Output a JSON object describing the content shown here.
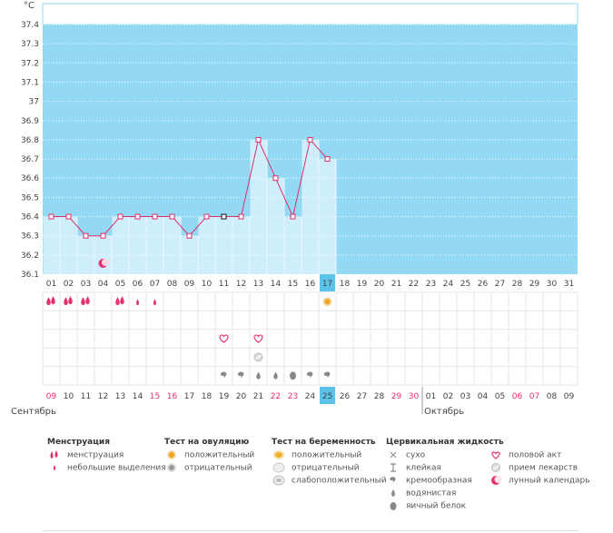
{
  "chart_data": {
    "type": "bar",
    "ylabel": "°C",
    "ylim": [
      36.1,
      37.4
    ],
    "yticks": [
      "36.1",
      "36.2",
      "36.3",
      "36.4",
      "36.5",
      "36.6",
      "36.7",
      "36.8",
      "36.9",
      "37",
      "37.1",
      "37.2",
      "37.3",
      "37.4"
    ],
    "cycle_days": [
      "01",
      "02",
      "03",
      "04",
      "05",
      "06",
      "07",
      "08",
      "09",
      "10",
      "11",
      "12",
      "13",
      "14",
      "15",
      "16",
      "17",
      "18",
      "19",
      "20",
      "21",
      "22",
      "23",
      "24",
      "25",
      "26",
      "27",
      "28",
      "29",
      "30",
      "31"
    ],
    "highlight_cycle_day": "17",
    "temperatures": [
      36.4,
      36.4,
      36.3,
      36.3,
      36.4,
      36.4,
      36.4,
      36.4,
      36.3,
      36.4,
      36.4,
      36.4,
      36.8,
      36.6,
      36.4,
      36.8,
      36.7
    ],
    "selected_point": 11,
    "dates": [
      "09",
      "10",
      "11",
      "12",
      "13",
      "14",
      "15",
      "16",
      "17",
      "18",
      "19",
      "20",
      "21",
      "22",
      "23",
      "24",
      "25",
      "26",
      "27",
      "28",
      "29",
      "30",
      "01",
      "02",
      "03",
      "04",
      "05",
      "06",
      "07",
      "08",
      "09"
    ],
    "red_dates": [
      0,
      6,
      7,
      13,
      14,
      20,
      21,
      27,
      28
    ],
    "highlight_date": "25",
    "months": [
      {
        "label": "Сентябрь"
      },
      {
        "label": "Октябрь"
      }
    ],
    "rows": {
      "menstruation": {
        "heavy": [
          1,
          2,
          3,
          5
        ],
        "light": [
          6,
          7
        ]
      },
      "ovulation_positive": [
        17
      ],
      "intercourse": [
        11,
        13
      ],
      "medication": [
        13
      ],
      "lunar": [
        4
      ],
      "cervical": [
        {
          "day": 11,
          "kind": "creamy"
        },
        {
          "day": 12,
          "kind": "creamy"
        },
        {
          "day": 13,
          "kind": "watery"
        },
        {
          "day": 14,
          "kind": "watery"
        },
        {
          "day": 15,
          "kind": "eggwhite"
        },
        {
          "day": 16,
          "kind": "creamy"
        },
        {
          "day": 17,
          "kind": "creamy"
        }
      ]
    }
  },
  "legend": {
    "menstruation": {
      "title": "Менструация",
      "items": [
        "менструация",
        "небольшие выделения"
      ]
    },
    "ovulation": {
      "title": "Тест на овуляцию",
      "items": [
        "положительный",
        "отрицательный"
      ]
    },
    "pregnancy": {
      "title": "Тест на беременность",
      "items": [
        "положительный",
        "отрицательный",
        "слабоположительный"
      ]
    },
    "cervical": {
      "title": "Цервикальная жидкость",
      "items": [
        "сухо",
        "клейкая",
        "кремообразная",
        "водянистая",
        "яичный белок"
      ]
    },
    "other": {
      "items": [
        "половой акт",
        "прием лекарств",
        "лунный календарь"
      ]
    }
  },
  "colors": {
    "sky": "#94d9f4",
    "bar": "#cfeefc",
    "line": "#dd2e6c",
    "pink": "#e8306d",
    "highlight": "#5bc3ea",
    "grid": "#e6e6e6"
  }
}
